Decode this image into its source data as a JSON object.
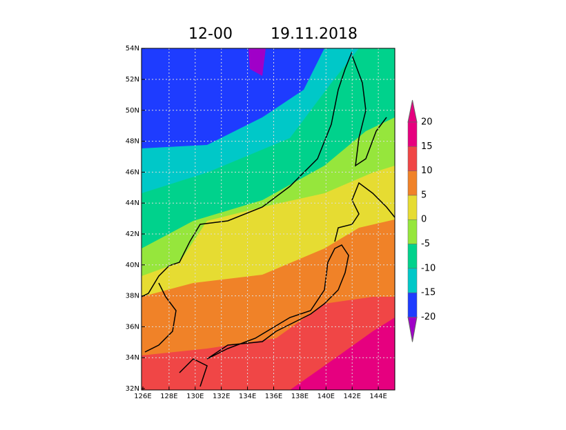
{
  "title": {
    "time": "12-00",
    "date": "19.11.2018"
  },
  "lat_labels": [
    "32N",
    "34N",
    "36N",
    "38N",
    "40N",
    "42N",
    "44N",
    "46N",
    "48N",
    "50N",
    "52N",
    "54N"
  ],
  "lon_labels": [
    "126E",
    "128E",
    "130E",
    "132E",
    "134E",
    "136E",
    "138E",
    "140E",
    "142E",
    "144E"
  ],
  "colorbar": [
    -20,
    -15,
    -10,
    -5,
    0,
    5,
    10,
    15,
    20
  ]
}
